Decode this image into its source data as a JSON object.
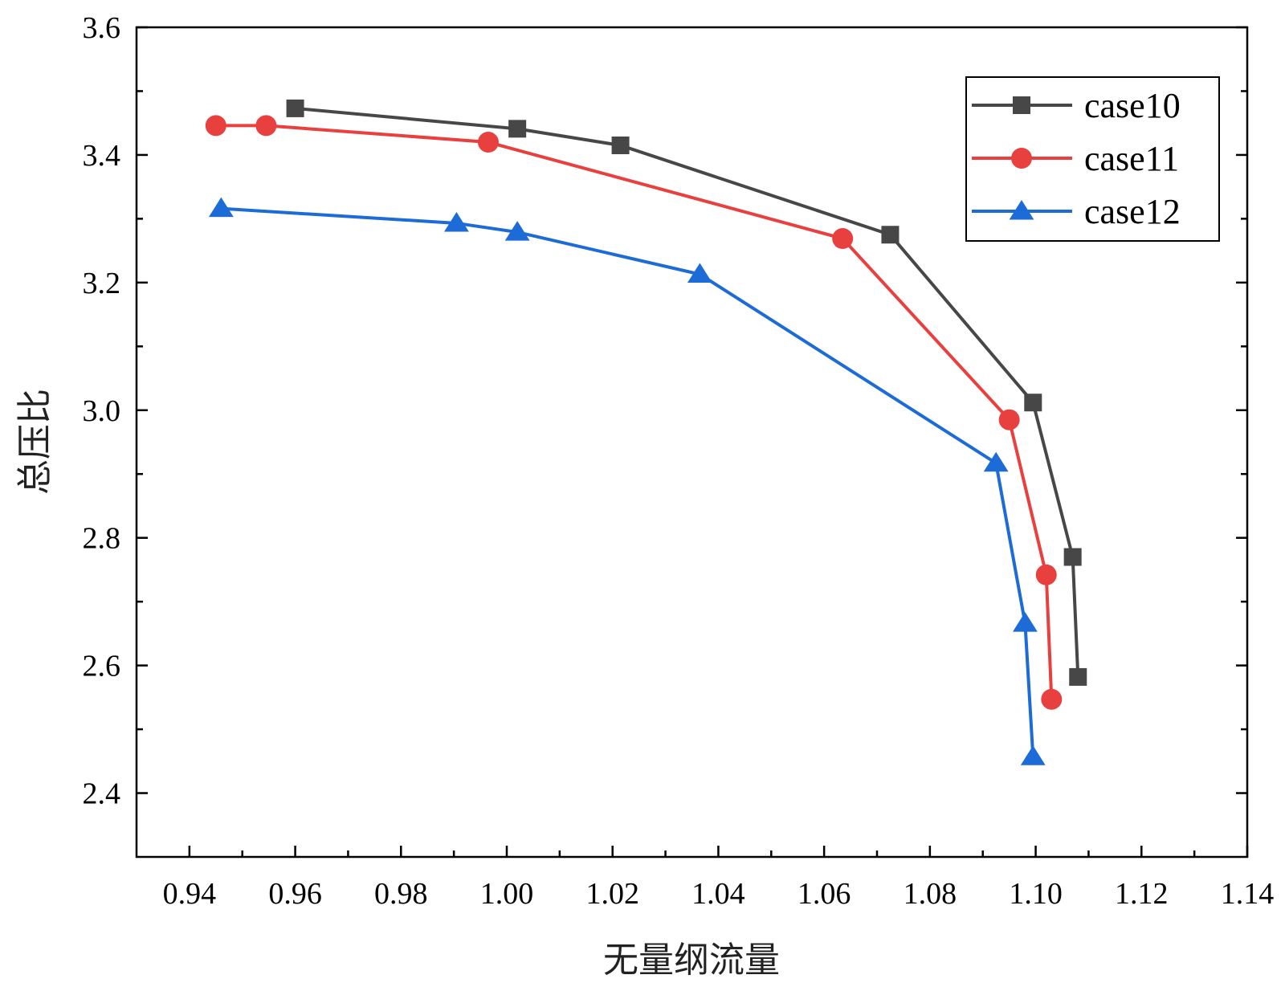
{
  "chart_data": {
    "type": "line",
    "title": "",
    "xlabel": "无量纲流量",
    "ylabel": "总压比",
    "xlim": [
      0.93,
      1.14
    ],
    "ylim": [
      2.3,
      3.6
    ],
    "xticks": [
      "0.94",
      "0.96",
      "0.98",
      "1.00",
      "1.02",
      "1.04",
      "1.06",
      "1.08",
      "1.10",
      "1.12",
      "1.14"
    ],
    "yticks": [
      "2.4",
      "2.6",
      "2.8",
      "3.0",
      "3.2",
      "3.4",
      "3.6"
    ],
    "grid": false,
    "legend_position": "top-right",
    "series": [
      {
        "name": "case10",
        "color": "#474747",
        "marker": "square",
        "points": [
          [
            0.96,
            3.473
          ],
          [
            1.002,
            3.441
          ],
          [
            1.0215,
            3.415
          ],
          [
            1.0725,
            3.275
          ],
          [
            1.0995,
            3.012
          ],
          [
            1.107,
            2.77
          ],
          [
            1.108,
            2.582
          ]
        ]
      },
      {
        "name": "case11",
        "color": "#e8403f",
        "marker": "circle",
        "points": [
          [
            0.945,
            3.446
          ],
          [
            0.9545,
            3.446
          ],
          [
            0.9965,
            3.42
          ],
          [
            1.0635,
            3.269
          ],
          [
            1.095,
            2.985
          ],
          [
            1.102,
            2.742
          ],
          [
            1.103,
            2.547
          ]
        ]
      },
      {
        "name": "case12",
        "color": "#1c6bd6",
        "marker": "triangle",
        "points": [
          [
            0.946,
            3.316
          ],
          [
            0.9905,
            3.293
          ],
          [
            1.002,
            3.279
          ],
          [
            1.0365,
            3.213
          ],
          [
            1.0925,
            2.917
          ],
          [
            1.098,
            2.666
          ],
          [
            1.0995,
            2.457
          ]
        ]
      }
    ]
  }
}
